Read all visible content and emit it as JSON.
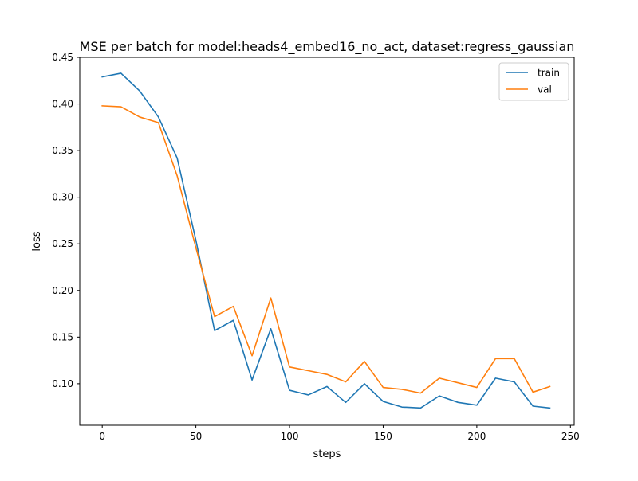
{
  "chart_data": {
    "type": "line",
    "title": "MSE per batch for model:heads4_embed16_no_act, dataset:regress_gaussian",
    "xlabel": "steps",
    "ylabel": "loss",
    "xlim": [
      -12,
      252
    ],
    "ylim": [
      0.0555,
      0.45
    ],
    "xticks": [
      0,
      50,
      100,
      150,
      200,
      250
    ],
    "xtick_labels": [
      "0",
      "50",
      "100",
      "150",
      "200",
      "250"
    ],
    "yticks": [
      0.1,
      0.15,
      0.2,
      0.25,
      0.3,
      0.35,
      0.4,
      0.45
    ],
    "ytick_labels": [
      "0.10",
      "0.15",
      "0.20",
      "0.25",
      "0.30",
      "0.35",
      "0.40",
      "0.45"
    ],
    "grid": false,
    "legend_position": "top-right",
    "x": [
      0,
      10,
      20,
      30,
      40,
      50,
      60,
      70,
      80,
      90,
      100,
      110,
      120,
      130,
      140,
      150,
      160,
      170,
      180,
      190,
      200,
      210,
      220,
      230,
      239
    ],
    "series": [
      {
        "name": "train",
        "color": "#1f77b4",
        "values": [
          0.429,
          0.433,
          0.414,
          0.386,
          0.342,
          0.254,
          0.157,
          0.168,
          0.104,
          0.159,
          0.093,
          0.088,
          0.097,
          0.08,
          0.1,
          0.081,
          0.075,
          0.074,
          0.087,
          0.08,
          0.077,
          0.106,
          0.102,
          0.076,
          0.074
        ]
      },
      {
        "name": "val",
        "color": "#ff7f0e",
        "values": [
          0.398,
          0.397,
          0.386,
          0.38,
          0.323,
          0.246,
          0.172,
          0.183,
          0.13,
          0.192,
          0.118,
          0.114,
          0.11,
          0.102,
          0.124,
          0.096,
          0.094,
          0.09,
          0.106,
          0.101,
          0.096,
          0.127,
          0.127,
          0.091,
          0.097
        ]
      }
    ]
  }
}
